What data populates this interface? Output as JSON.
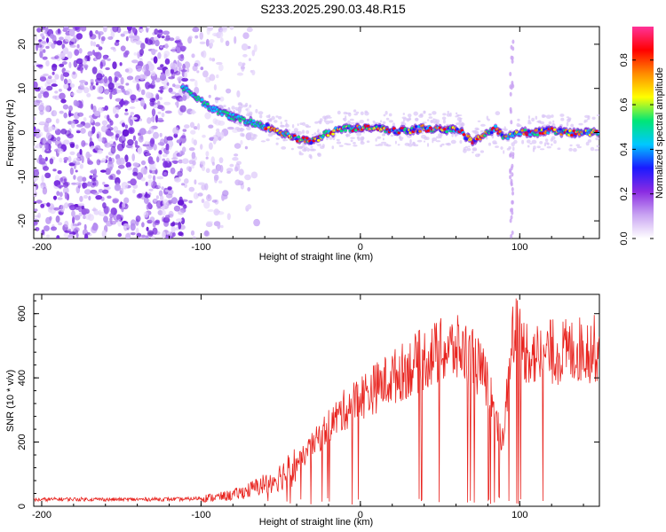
{
  "page_title": "S233.2025.290.03.48.R15",
  "colors": {
    "snr_line": "#e8231e",
    "colorbar_stops": [
      "#ffffff",
      "#c9a4f2",
      "#8a2be2",
      "#1a1aff",
      "#00c8ff",
      "#00e676",
      "#ffff00",
      "#ff8c00",
      "#ff0000",
      "#ff3399"
    ]
  },
  "chart_data": [
    {
      "type": "heatmap",
      "title": "S233.2025.290.03.48.R15",
      "xlabel": "Height of straight line (km)",
      "ylabel": "Frequency (Hz)",
      "colorbar_label": "Normalized spectral amplitude",
      "xlim": [
        -205,
        150
      ],
      "ylim": [
        -24,
        24
      ],
      "xticks": [
        -200,
        -100,
        0,
        100
      ],
      "yticks": [
        -20,
        -10,
        0,
        10,
        20
      ],
      "colorbar_range": [
        0,
        0.95
      ],
      "colorbar_ticks": [
        0.0,
        0.2,
        0.4,
        0.6,
        0.8
      ],
      "ridge_frequency": {
        "x": [
          -110,
          -100,
          -90,
          -80,
          -70,
          -60,
          -50,
          -40,
          -30,
          -20,
          -10,
          0,
          10,
          20,
          30,
          40,
          50,
          60,
          70,
          80,
          85,
          90,
          100,
          110,
          120,
          130,
          140,
          150
        ],
        "y": [
          10,
          7,
          5,
          3.5,
          2.5,
          1.5,
          0,
          -1.5,
          -2,
          0,
          1,
          1,
          1,
          0.5,
          0.5,
          1,
          0.5,
          1,
          -2,
          0,
          1,
          -1,
          0,
          0,
          0.5,
          0,
          0,
          0
        ]
      }
    },
    {
      "type": "line",
      "xlabel": "Height of straight line (km)",
      "ylabel": "SNR (10 * v/v)",
      "xlim": [
        -205,
        150
      ],
      "ylim": [
        0,
        660
      ],
      "xticks": [
        -200,
        -100,
        0,
        100
      ],
      "yticks": [
        0,
        200,
        400,
        600
      ],
      "series": [
        {
          "x": [
            -205,
            -190,
            -170,
            -150,
            -130,
            -110,
            -100,
            -90,
            -80,
            -70,
            -60,
            -50,
            -40,
            -30,
            -20,
            -10,
            0,
            10,
            20,
            30,
            40,
            50,
            60,
            70,
            80,
            85,
            90,
            95,
            100,
            110,
            120,
            130,
            140,
            150
          ],
          "values": [
            20,
            22,
            22,
            21,
            22,
            22,
            25,
            28,
            35,
            50,
            70,
            95,
            130,
            190,
            250,
            300,
            340,
            370,
            400,
            430,
            460,
            480,
            490,
            470,
            380,
            260,
            200,
            560,
            500,
            470,
            480,
            480,
            490,
            490
          ]
        }
      ]
    }
  ]
}
